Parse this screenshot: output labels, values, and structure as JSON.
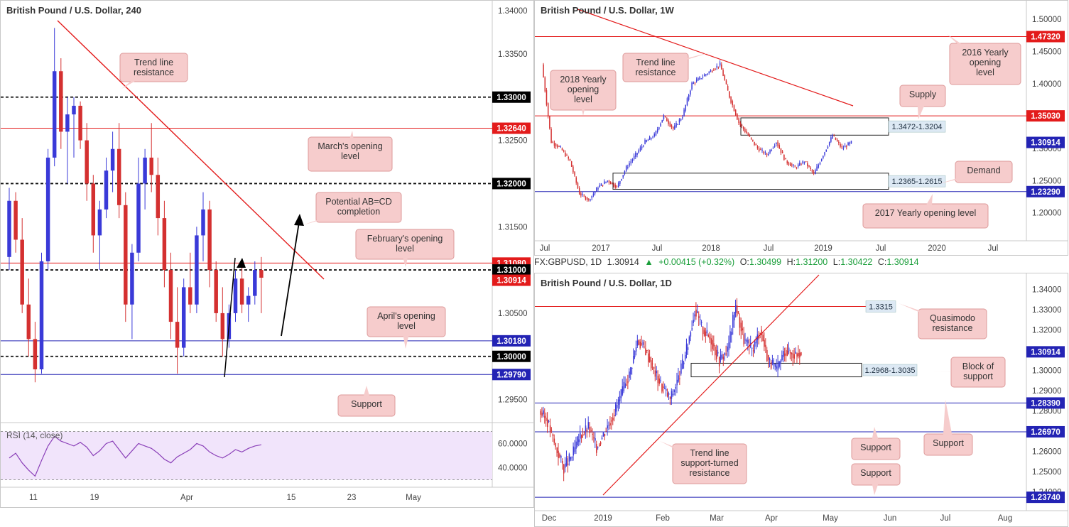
{
  "colors": {
    "resistance_red": "#e31b1b",
    "support_blue": "#2323b4",
    "candle_up": "#3a3ad8",
    "candle_down": "#d43030",
    "callout_fill": "#f6cccc",
    "callout_border": "#dd9a9a",
    "zone_label_fill": "#dde9f4",
    "rsi_fill": "#f1e4fb",
    "rsi_line": "#8a3fb8"
  },
  "h4": {
    "title": "British Pound / U.S. Dollar, 240",
    "y_ticks": [
      "1.34000",
      "1.33500",
      "1.32500",
      "1.31500",
      "1.30500",
      "1.29500"
    ],
    "x_ticks": [
      "11",
      "19",
      "Apr",
      "15",
      "23",
      "May"
    ],
    "levels": [
      {
        "label": "1.33000",
        "style": "dashed-black"
      },
      {
        "label": "1.32640",
        "style": "red"
      },
      {
        "label": "1.32000",
        "style": "dashed-black"
      },
      {
        "label": "1.31080",
        "style": "red"
      },
      {
        "label": "1.31000",
        "style": "dashed-black"
      },
      {
        "label": "1.30914",
        "style": "current"
      },
      {
        "label": "1.30180",
        "style": "blue"
      },
      {
        "label": "1.30000",
        "style": "dashed-black"
      },
      {
        "label": "1.29790",
        "style": "blue"
      }
    ],
    "callouts": {
      "trend": "Trend line resistance",
      "march": "March's opening level",
      "abcd": "Potential AB=CD completion",
      "feb": "February's opening level",
      "april": "April's opening level",
      "support": "Support"
    },
    "rsi": {
      "label": "RSI (14, close)",
      "ticks": [
        "60.0000",
        "40.0000"
      ]
    }
  },
  "w1": {
    "title": "British Pound / U.S. Dollar, 1W",
    "y_ticks": [
      "1.50000",
      "1.45000",
      "1.40000",
      "1.30000",
      "1.25000",
      "1.20000"
    ],
    "x_ticks": [
      "Jul",
      "2017",
      "Jul",
      "2018",
      "Jul",
      "2019",
      "Jul",
      "2020",
      "Jul"
    ],
    "levels": [
      {
        "label": "1.47320",
        "style": "red"
      },
      {
        "label": "1.35030",
        "style": "red"
      },
      {
        "label": "1.30914",
        "style": "blue-current"
      },
      {
        "label": "1.23290",
        "style": "blue"
      }
    ],
    "zones": {
      "supply": "1.3472-1.3204",
      "demand": "1.2365-1.2615"
    },
    "callouts": {
      "trend": "Trend line resistance",
      "y2018": "2018 Yearly opening level",
      "y2016": "2016 Yearly opening level",
      "supply": "Supply",
      "demand": "Demand",
      "y2017": "2017 Yearly opening level"
    }
  },
  "d1": {
    "info": {
      "symbol": "FX:GBPUSD, 1D",
      "price": "1.30914",
      "change": "+0.00415 (+0.32%)",
      "o_label": "O:",
      "o": "1.30499",
      "h_label": "H:",
      "h": "1.31200",
      "l_label": "L:",
      "l": "1.30422",
      "c_label": "C:",
      "c": "1.30914"
    },
    "title": "British Pound / U.S. Dollar, 1D",
    "y_ticks": [
      "1.34000",
      "1.33000",
      "1.32000",
      "1.30000",
      "1.29000",
      "1.28000",
      "1.26000",
      "1.25000",
      "1.24000"
    ],
    "x_ticks": [
      "Dec",
      "2019",
      "Feb",
      "Mar",
      "Apr",
      "May",
      "Jun",
      "Jul",
      "Aug"
    ],
    "levels": [
      {
        "label": "1.30914",
        "style": "blue-current"
      },
      {
        "label": "1.28390",
        "style": "blue"
      },
      {
        "label": "1.26970",
        "style": "blue"
      },
      {
        "label": "1.23740",
        "style": "blue"
      }
    ],
    "zones": {
      "qm": "1.3315",
      "block": "1.2968-1.3035"
    },
    "callouts": {
      "qm": "Quasimodo resistance",
      "block": "Block of support",
      "support1": "Support",
      "support2": "Support",
      "support3": "Support",
      "trend": "Trend line support-turned resistance"
    }
  },
  "chart_data": [
    {
      "type": "candlestick",
      "title": "British Pound / U.S. Dollar, 240",
      "x_ticks": [
        "11",
        "19",
        "Apr",
        "15",
        "23",
        "May"
      ],
      "ylim": [
        1.2925,
        1.3405
      ],
      "horizontal_levels": [
        1.33,
        1.3264,
        1.32,
        1.3108,
        1.31,
        1.3018,
        1.3,
        1.2979
      ],
      "last_price": 1.30914,
      "ohlc_approx": [
        [
          1.3115,
          1.3195,
          1.31,
          1.318
        ],
        [
          1.318,
          1.319,
          1.312,
          1.3135
        ],
        [
          1.3135,
          1.316,
          1.305,
          1.306
        ],
        [
          1.306,
          1.309,
          1.3,
          1.302
        ],
        [
          1.302,
          1.304,
          1.297,
          1.2985
        ],
        [
          1.2985,
          1.312,
          1.298,
          1.311
        ],
        [
          1.311,
          1.324,
          1.31,
          1.323
        ],
        [
          1.323,
          1.338,
          1.322,
          1.333
        ],
        [
          1.333,
          1.3345,
          1.324,
          1.326
        ],
        [
          1.326,
          1.33,
          1.32,
          1.328
        ],
        [
          1.328,
          1.33,
          1.323,
          1.329
        ],
        [
          1.329,
          1.3295,
          1.324,
          1.325
        ],
        [
          1.325,
          1.327,
          1.318,
          1.32
        ],
        [
          1.32,
          1.321,
          1.312,
          1.314
        ],
        [
          1.314,
          1.318,
          1.31,
          1.317
        ],
        [
          1.317,
          1.323,
          1.316,
          1.3215
        ],
        [
          1.3215,
          1.326,
          1.319,
          1.324
        ],
        [
          1.324,
          1.327,
          1.316,
          1.3175
        ],
        [
          1.3175,
          1.319,
          1.304,
          1.306
        ],
        [
          1.306,
          1.313,
          1.302,
          1.312
        ],
        [
          1.312,
          1.323,
          1.311,
          1.32
        ],
        [
          1.32,
          1.324,
          1.317,
          1.323
        ],
        [
          1.323,
          1.327,
          1.319,
          1.321
        ],
        [
          1.321,
          1.323,
          1.314,
          1.316
        ],
        [
          1.316,
          1.318,
          1.308,
          1.31
        ],
        [
          1.31,
          1.312,
          1.302,
          1.304
        ],
        [
          1.304,
          1.308,
          1.298,
          1.301
        ],
        [
          1.301,
          1.309,
          1.3,
          1.308
        ],
        [
          1.308,
          1.312,
          1.305,
          1.306
        ],
        [
          1.306,
          1.315,
          1.305,
          1.314
        ],
        [
          1.314,
          1.319,
          1.311,
          1.317
        ],
        [
          1.317,
          1.318,
          1.308,
          1.31
        ],
        [
          1.31,
          1.311,
          1.304,
          1.305
        ],
        [
          1.305,
          1.308,
          1.3,
          1.302
        ],
        [
          1.302,
          1.306,
          1.301,
          1.305
        ],
        [
          1.305,
          1.31,
          1.304,
          1.309
        ],
        [
          1.309,
          1.311,
          1.305,
          1.306
        ],
        [
          1.306,
          1.308,
          1.304,
          1.307
        ],
        [
          1.307,
          1.311,
          1.306,
          1.31
        ],
        [
          1.31,
          1.3115,
          1.305,
          1.3091
        ]
      ]
    },
    {
      "type": "line",
      "title": "RSI (14, close)",
      "ylim": [
        25,
        75
      ],
      "guide_levels": [
        70,
        30
      ],
      "values": [
        48,
        52,
        44,
        38,
        33,
        46,
        58,
        66,
        62,
        60,
        58,
        61,
        57,
        50,
        54,
        60,
        62,
        55,
        48,
        54,
        60,
        58,
        56,
        52,
        47,
        44,
        49,
        52,
        55,
        60,
        58,
        53,
        50,
        48,
        51,
        55,
        53,
        56,
        58,
        59
      ]
    },
    {
      "type": "candlestick",
      "title": "British Pound / U.S. Dollar, 1W",
      "x_ticks": [
        "Jul",
        "2017",
        "Jul",
        "2018",
        "Jul",
        "2019",
        "Jul",
        "2020",
        "Jul"
      ],
      "ylim": [
        1.16,
        1.52
      ],
      "horizontal_levels": [
        1.4732,
        1.3503,
        1.2329
      ],
      "zones": [
        [
          1.3204,
          1.3472
        ],
        [
          1.2365,
          1.2615
        ]
      ],
      "last_price": 1.30914,
      "close_path_approx": [
        1.43,
        1.31,
        1.3,
        1.28,
        1.23,
        1.22,
        1.24,
        1.25,
        1.24,
        1.27,
        1.29,
        1.31,
        1.32,
        1.35,
        1.33,
        1.35,
        1.4,
        1.41,
        1.42,
        1.43,
        1.38,
        1.34,
        1.32,
        1.3,
        1.29,
        1.31,
        1.28,
        1.27,
        1.28,
        1.26,
        1.29,
        1.32,
        1.3,
        1.3091
      ]
    },
    {
      "type": "candlestick",
      "title": "British Pound / U.S. Dollar, 1D",
      "x_ticks": [
        "Dec",
        "2019",
        "Feb",
        "Mar",
        "Apr",
        "May",
        "Jun",
        "Jul",
        "Aug"
      ],
      "ylim": [
        1.235,
        1.345
      ],
      "horizontal_levels": [
        1.3315,
        1.2839,
        1.2697,
        1.2374
      ],
      "zones": [
        [
          1.2968,
          1.3035
        ]
      ],
      "last_price": 1.30914,
      "close_path_approx": [
        1.28,
        1.275,
        1.262,
        1.252,
        1.258,
        1.268,
        1.272,
        1.262,
        1.27,
        1.278,
        1.288,
        1.298,
        1.315,
        1.31,
        1.3,
        1.292,
        1.286,
        1.296,
        1.31,
        1.33,
        1.32,
        1.315,
        1.305,
        1.31,
        1.332,
        1.315,
        1.31,
        1.32,
        1.305,
        1.3,
        1.31,
        1.308,
        1.3091
      ]
    }
  ]
}
